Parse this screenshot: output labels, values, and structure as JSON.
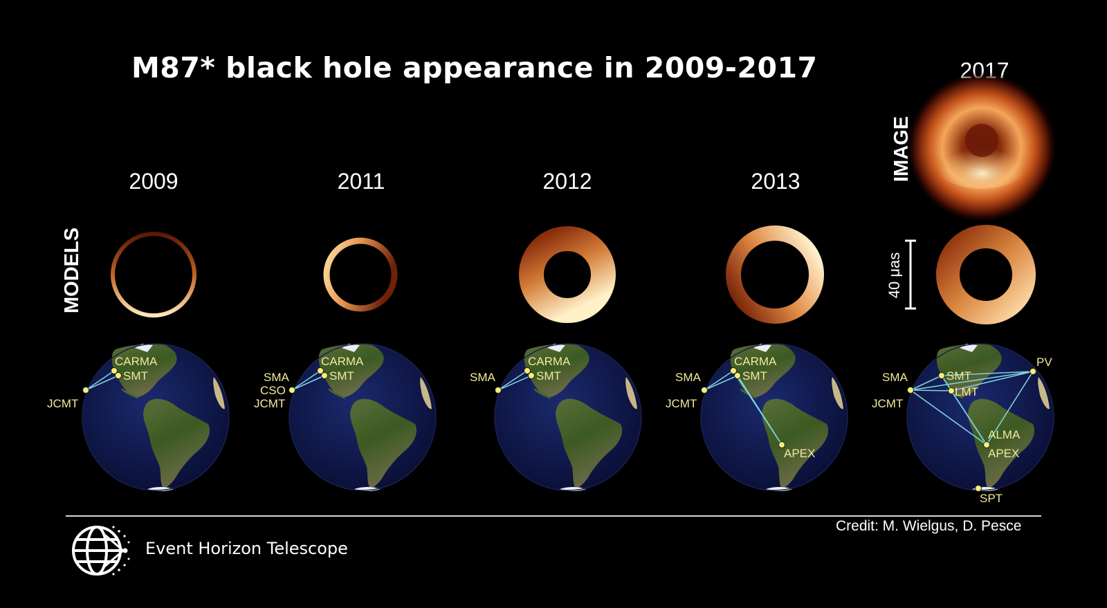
{
  "title": "M87* black hole appearance in 2009-2017",
  "row_labels": {
    "models": "MODELS",
    "image": "IMAGE"
  },
  "scale_bar": "40 μas",
  "panels": [
    {
      "year": "2009",
      "stations": [
        "CARMA",
        "SMT",
        "JCMT"
      ]
    },
    {
      "year": "2011",
      "stations": [
        "CARMA",
        "SMT",
        "SMA",
        "CSO",
        "JCMT"
      ]
    },
    {
      "year": "2012",
      "stations": [
        "CARMA",
        "SMT",
        "SMA"
      ]
    },
    {
      "year": "2013",
      "stations": [
        "CARMA",
        "SMT",
        "SMA",
        "JCMT",
        "APEX"
      ]
    },
    {
      "year": "2017",
      "stations": [
        "SMT",
        "LMT",
        "PV",
        "SMA",
        "JCMT",
        "ALMA",
        "APEX",
        "SPT"
      ]
    }
  ],
  "footer": {
    "organization": "Event Horizon Telescope",
    "credit": "Credit: M. Wielgus, D. Pesce"
  },
  "colors": {
    "background": "#000000",
    "ring_bright": "#fff0c8",
    "ring_dark": "#6a1e08",
    "ocean": "#10184a",
    "baseline": "#7fd3df",
    "station": "#f5ee7a"
  }
}
